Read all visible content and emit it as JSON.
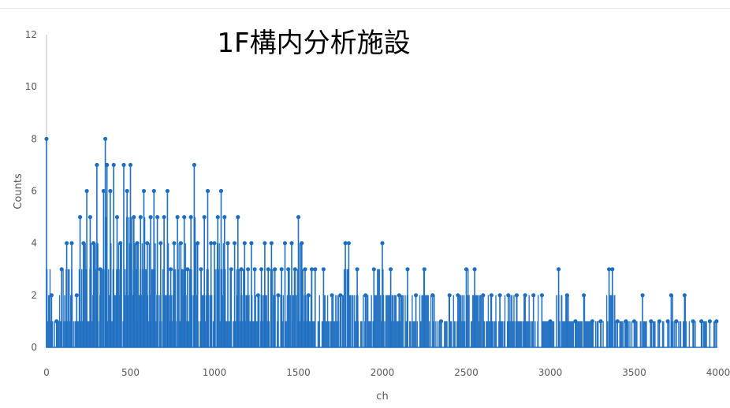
{
  "chart_data": {
    "type": "line",
    "title": "1F構内分析施設",
    "xlabel": "ch",
    "ylabel": "Counts",
    "xlim": [
      0,
      4000
    ],
    "ylim": [
      0,
      12
    ],
    "x_ticks": [
      "0",
      "500",
      "1000",
      "1500",
      "2000",
      "2500",
      "3000",
      "3500",
      "4000"
    ],
    "y_ticks": [
      "0",
      "2",
      "4",
      "6",
      "8",
      "10",
      "12"
    ],
    "grid": false,
    "legend": "none",
    "line_color": "#1f6fc1",
    "marker": "circle",
    "series": [
      {
        "x": [
          0,
          30,
          60,
          90,
          120,
          150,
          180,
          200,
          220,
          240,
          260,
          280,
          300,
          320,
          340,
          350,
          360,
          380,
          400,
          420,
          440,
          460,
          480,
          500,
          520,
          540,
          560,
          580,
          600,
          620,
          640,
          660,
          680,
          700,
          720,
          740,
          760,
          780,
          800,
          820,
          840,
          860,
          880,
          900,
          920,
          940,
          960,
          980,
          1000,
          1020,
          1040,
          1060,
          1080,
          1100,
          1120,
          1140,
          1160,
          1180,
          1200,
          1220,
          1240,
          1260,
          1280,
          1300,
          1320,
          1340,
          1360,
          1380,
          1400,
          1420,
          1440,
          1460,
          1480,
          1500,
          1520,
          1540,
          1560,
          1580,
          1600,
          1650,
          1700,
          1750,
          1780,
          1800,
          1850,
          1900,
          1950,
          2000,
          2050,
          2100,
          2150,
          2200,
          2250,
          2300,
          2350,
          2400,
          2450,
          2500,
          2550,
          2600,
          2650,
          2700,
          2750,
          2800,
          2850,
          2900,
          2950,
          3000,
          3050,
          3100,
          3150,
          3200,
          3250,
          3300,
          3350,
          3370,
          3400,
          3450,
          3500,
          3550,
          3600,
          3650,
          3700,
          3720,
          3750,
          3800,
          3850,
          3900,
          3950,
          3990
        ],
        "y": [
          8,
          2,
          1,
          3,
          4,
          4,
          2,
          5,
          4,
          6,
          5,
          4,
          7,
          3,
          6,
          8,
          7,
          6,
          7,
          5,
          4,
          7,
          6,
          7,
          5,
          4,
          5,
          6,
          4,
          5,
          6,
          5,
          4,
          5,
          6,
          3,
          4,
          5,
          4,
          5,
          3,
          5,
          7,
          4,
          3,
          5,
          6,
          4,
          4,
          5,
          6,
          5,
          4,
          3,
          4,
          5,
          3,
          4,
          3,
          4,
          3,
          2,
          3,
          4,
          3,
          4,
          3,
          2,
          3,
          4,
          3,
          4,
          3,
          5,
          4,
          3,
          2,
          3,
          3,
          3,
          2,
          2,
          4,
          4,
          3,
          2,
          3,
          4,
          3,
          2,
          3,
          2,
          3,
          2,
          1,
          2,
          2,
          3,
          3,
          2,
          2,
          2,
          2,
          2,
          2,
          2,
          2,
          1,
          3,
          2,
          1,
          2,
          1,
          1,
          3,
          3,
          1,
          1,
          1,
          2,
          1,
          1,
          1,
          2,
          1,
          2,
          1,
          1,
          1,
          1
        ]
      }
    ]
  }
}
